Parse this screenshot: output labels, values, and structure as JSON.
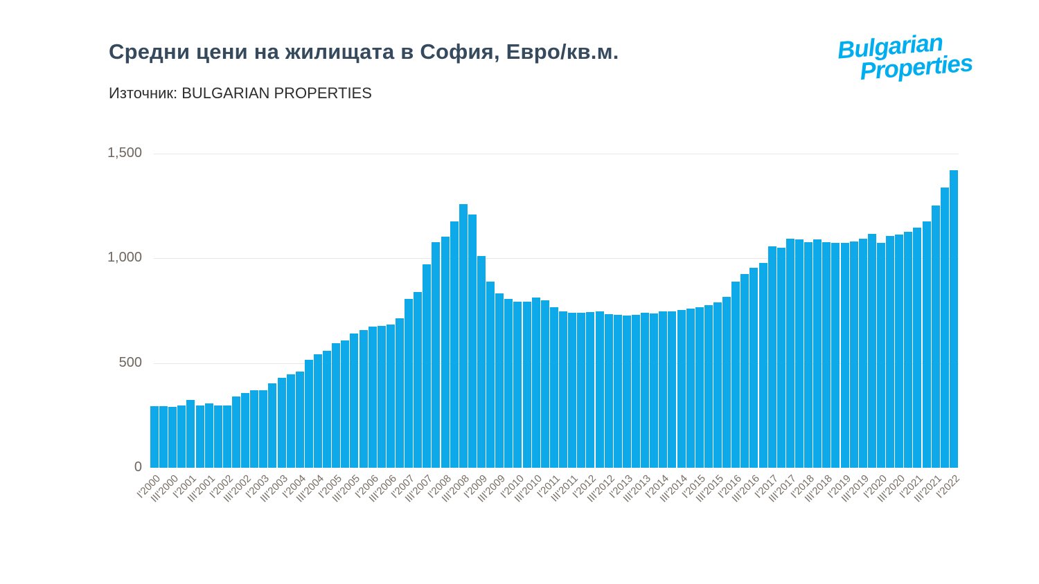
{
  "header": {
    "title": "Средни цени на жилищата в София, Евро/кв.м.",
    "source": "Източник: BULGARIAN PROPERTIES"
  },
  "logo": {
    "line1": "Bulgarian",
    "line2": "Properties",
    "color": "#00aeef"
  },
  "colors": {
    "bar": "#0da9e8",
    "title": "#364a5e",
    "axis_text": "#6e665e",
    "gridline": "#e8e6e2",
    "background": "#ffffff"
  },
  "chart_data": {
    "type": "bar",
    "title": "Средни цени на жилищата в София, Евро/кв.м.",
    "source": "Източник: BULGARIAN PROPERTIES",
    "ylabel": "",
    "xlabel": "",
    "unit": "EUR/sq.m",
    "ylim": [
      0,
      1500
    ],
    "y_ticks": [
      0,
      500,
      1000,
      1500
    ],
    "y_tick_labels": [
      "0",
      "500",
      "1,000",
      "1,500"
    ],
    "gridline_values": [
      500,
      1000,
      1500
    ],
    "grid": true,
    "legend": false,
    "x_tick_every": 2,
    "categories": [
      "I'2000",
      "II'2000",
      "III'2000",
      "IV'2000",
      "I'2001",
      "II'2001",
      "III'2001",
      "IV'2001",
      "I'2002",
      "II'2002",
      "III'2002",
      "IV'2002",
      "I'2003",
      "II'2003",
      "III'2003",
      "IV'2003",
      "I'2004",
      "II'2004",
      "III'2004",
      "IV'2004",
      "I'2005",
      "II'2005",
      "III'2005",
      "IV'2005",
      "I'2006",
      "II'2006",
      "III'2006",
      "IV'2006",
      "I'2007",
      "II'2007",
      "III'2007",
      "IV'2007",
      "I'2008",
      "II'2008",
      "III'2008",
      "IV'2008",
      "I'2009",
      "II'2009",
      "III'2009",
      "IV'2009",
      "I'2010",
      "II'2010",
      "III'2010",
      "IV'2010",
      "I'2011",
      "II'2011",
      "III'2011",
      "IV'2011",
      "I'2012",
      "II'2012",
      "III'2012",
      "IV'2012",
      "I'2013",
      "II'2013",
      "III'2013",
      "IV'2013",
      "I'2014",
      "II'2014",
      "III'2014",
      "IV'2014",
      "I'2015",
      "II'2015",
      "III'2015",
      "IV'2015",
      "I'2016",
      "II'2016",
      "III'2016",
      "IV'2016",
      "I'2017",
      "II'2017",
      "III'2017",
      "IV'2017",
      "I'2018",
      "II'2018",
      "III'2018",
      "IV'2018",
      "I'2019",
      "II'2019",
      "III'2019",
      "IV'2019",
      "I'2020",
      "II'2020",
      "III'2020",
      "IV'2020",
      "I'2021",
      "II'2021",
      "III'2021",
      "IV'2021",
      "I'2022"
    ],
    "values": [
      295,
      293,
      292,
      298,
      324,
      298,
      306,
      297,
      296,
      340,
      358,
      369,
      369,
      402,
      428,
      445,
      459,
      517,
      542,
      558,
      594,
      608,
      641,
      658,
      674,
      678,
      685,
      713,
      806,
      839,
      971,
      1076,
      1104,
      1175,
      1258,
      1208,
      1012,
      889,
      834,
      806,
      792,
      792,
      812,
      798,
      766,
      748,
      740,
      740,
      743,
      748,
      735,
      729,
      727,
      731,
      740,
      738,
      746,
      746,
      753,
      760,
      765,
      776,
      790,
      815,
      889,
      924,
      955,
      979,
      1056,
      1052,
      1093,
      1089,
      1078,
      1089,
      1076,
      1073,
      1073,
      1082,
      1093,
      1118,
      1073,
      1107,
      1113,
      1128,
      1148,
      1175,
      1252,
      1338,
      1422
    ]
  }
}
